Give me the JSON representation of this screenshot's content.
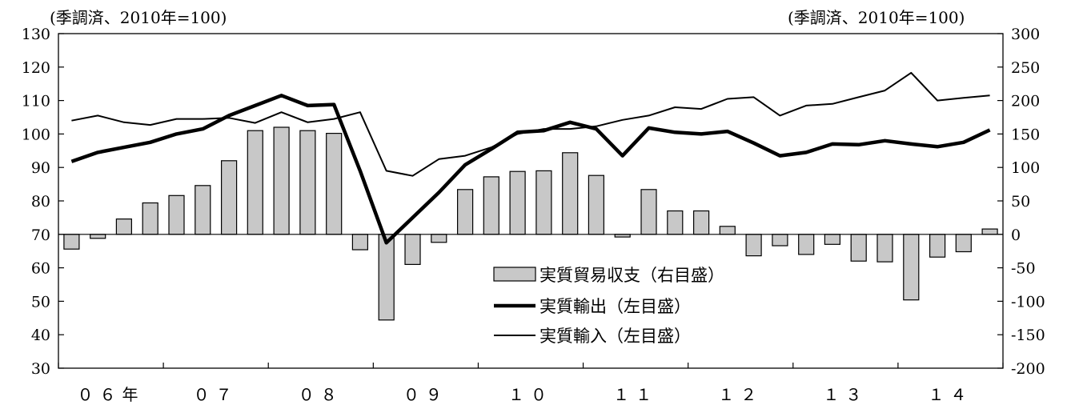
{
  "chart_data": {
    "type": "bar+line",
    "left_axis_unit": "(季調済、2010年=100)",
    "right_axis_unit": "(季調済、2010年=100)",
    "left_ylim": [
      30,
      130
    ],
    "left_ticks": [
      30,
      40,
      50,
      60,
      70,
      80,
      90,
      100,
      110,
      120,
      130
    ],
    "right_ylim": [
      -200,
      300
    ],
    "right_ticks": [
      -200,
      -150,
      -100,
      -50,
      0,
      50,
      100,
      150,
      200,
      250,
      300
    ],
    "x_year_labels": [
      "０６年",
      "０７",
      "０８",
      "０９",
      "１０",
      "１１",
      "１２",
      "１３",
      "１４"
    ],
    "quarters": [
      "06Q1",
      "06Q2",
      "06Q3",
      "06Q4",
      "07Q1",
      "07Q2",
      "07Q3",
      "07Q4",
      "08Q1",
      "08Q2",
      "08Q3",
      "08Q4",
      "09Q1",
      "09Q2",
      "09Q3",
      "09Q4",
      "10Q1",
      "10Q2",
      "10Q3",
      "10Q4",
      "11Q1",
      "11Q2",
      "11Q3",
      "11Q4",
      "12Q1",
      "12Q2",
      "12Q3",
      "12Q4",
      "13Q1",
      "13Q2",
      "13Q3",
      "13Q4",
      "14Q1",
      "14Q2",
      "14Q3",
      "14Q4"
    ],
    "series": [
      {
        "name": "実質貿易収支（右目盛）",
        "type": "bar",
        "axis": "right",
        "color": "#c8c8c8",
        "values": [
          -22,
          -6,
          23,
          47,
          58,
          73,
          110,
          155,
          160,
          155,
          151,
          -23,
          -128,
          -45,
          -12,
          67,
          86,
          94,
          95,
          122,
          88,
          -4,
          67,
          35,
          35,
          12,
          -32,
          -17,
          -30,
          -15,
          -40,
          -41,
          -98,
          -34,
          -26,
          8
        ]
      },
      {
        "name": "実質輸出（左目盛）",
        "type": "line",
        "axis": "left",
        "width": 4.5,
        "color": "#000000",
        "values": [
          91.8,
          94.5,
          96.0,
          97.5,
          100.0,
          101.5,
          105.5,
          108.5,
          111.5,
          108.5,
          108.8,
          89.0,
          67.5,
          75.0,
          82.5,
          90.8,
          95.5,
          100.5,
          101.0,
          103.5,
          101.5,
          93.5,
          101.8,
          100.5,
          100.0,
          100.8,
          97.3,
          93.5,
          94.5,
          97.0,
          96.8,
          98.0,
          97.0,
          96.2,
          97.5,
          101.2
        ]
      },
      {
        "name": "実質輸入（左目盛）",
        "type": "line",
        "axis": "left",
        "width": 2,
        "color": "#000000",
        "values": [
          104.0,
          105.5,
          103.5,
          102.7,
          104.5,
          104.5,
          104.8,
          103.3,
          106.5,
          103.5,
          104.5,
          106.5,
          89.0,
          87.5,
          92.5,
          93.5,
          96.0,
          100.0,
          101.5,
          101.5,
          102.3,
          104.2,
          105.5,
          108.0,
          107.5,
          110.5,
          111.0,
          105.5,
          108.5,
          109.0,
          111.0,
          113.0,
          118.3,
          110.0,
          110.8,
          111.5
        ]
      }
    ]
  }
}
